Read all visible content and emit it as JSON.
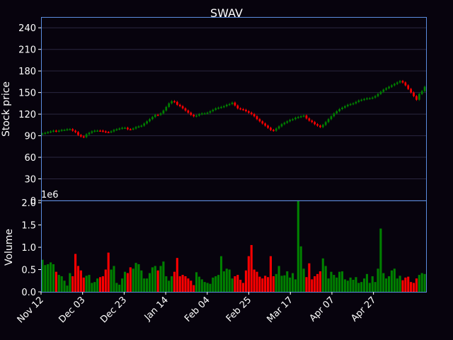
{
  "chart_data": {
    "type": "candlestick",
    "title": "SWAV",
    "colors": {
      "background": "#07030d",
      "frame": "#5b8de0",
      "grid": "#2a2740",
      "up": "#008000",
      "down": "#ff0000",
      "text": "#ffffff"
    },
    "price_panel": {
      "ylabel": "Stock price",
      "ylim": [
        0,
        255
      ],
      "yticks": [
        0,
        30,
        60,
        90,
        120,
        150,
        180,
        210,
        240
      ],
      "grid": true
    },
    "volume_panel": {
      "ylabel": "Volume",
      "exponent_label": "1e6",
      "ylim": [
        0,
        2.05
      ],
      "yticks": [
        "0.0",
        "0.5",
        "1.0",
        "1.5",
        "2.0"
      ],
      "ytick_values": [
        0,
        0.5,
        1.0,
        1.5,
        2.0
      ]
    },
    "x_tick_labels": [
      {
        "label": "Nov 12",
        "index": 0
      },
      {
        "label": "Dec 03",
        "index": 15
      },
      {
        "label": "Dec 23",
        "index": 30
      },
      {
        "label": "Jan 14",
        "index": 45
      },
      {
        "label": "Feb 04",
        "index": 60
      },
      {
        "label": "Feb 25",
        "index": 75
      },
      {
        "label": "Mar 17",
        "index": 90
      },
      {
        "label": "Apr 07",
        "index": 105
      },
      {
        "label": "Apr 27",
        "index": 120
      }
    ],
    "close": [
      93,
      94,
      95,
      96,
      97,
      96,
      97,
      98,
      98,
      99,
      99,
      97,
      95,
      91,
      89,
      88,
      92,
      94,
      96,
      97,
      97,
      97,
      96,
      95,
      95,
      96,
      98,
      99,
      100,
      101,
      101,
      99,
      99,
      100,
      102,
      103,
      104,
      107,
      110,
      113,
      116,
      119,
      119,
      121,
      125,
      130,
      135,
      138,
      137,
      133,
      131,
      128,
      125,
      122,
      119,
      117,
      118,
      120,
      121,
      121,
      122,
      124,
      126,
      128,
      129,
      130,
      131,
      133,
      134,
      136,
      132,
      128,
      127,
      126,
      124,
      122,
      120,
      117,
      113,
      110,
      107,
      104,
      101,
      98,
      97,
      100,
      103,
      106,
      108,
      110,
      112,
      113,
      115,
      116,
      117,
      118,
      114,
      111,
      109,
      106,
      104,
      102,
      105,
      109,
      113,
      117,
      121,
      124,
      127,
      129,
      131,
      133,
      134,
      135,
      137,
      139,
      140,
      141,
      142,
      142,
      143,
      145,
      148,
      151,
      154,
      156,
      158,
      160,
      162,
      164,
      166,
      164,
      160,
      155,
      150,
      145,
      140,
      148,
      152,
      158
    ],
    "change": [
      1,
      1,
      1,
      1,
      1,
      -1,
      1,
      1,
      1,
      1,
      1,
      -1,
      -1,
      -1,
      -1,
      -1,
      1,
      1,
      1,
      1,
      1,
      -1,
      -1,
      -1,
      -1,
      1,
      1,
      1,
      1,
      1,
      1,
      -1,
      -1,
      1,
      1,
      1,
      1,
      1,
      1,
      1,
      1,
      1,
      -1,
      1,
      1,
      1,
      1,
      1,
      -1,
      -1,
      -1,
      -1,
      -1,
      -1,
      -1,
      -1,
      1,
      1,
      1,
      1,
      1,
      1,
      1,
      1,
      1,
      1,
      1,
      1,
      1,
      1,
      -1,
      -1,
      -1,
      -1,
      -1,
      -1,
      -1,
      -1,
      -1,
      -1,
      -1,
      -1,
      -1,
      -1,
      -1,
      1,
      1,
      1,
      1,
      1,
      1,
      1,
      1,
      1,
      1,
      1,
      -1,
      -1,
      -1,
      -1,
      -1,
      -1,
      1,
      1,
      1,
      1,
      1,
      1,
      1,
      1,
      1,
      1,
      1,
      1,
      1,
      1,
      1,
      1,
      1,
      1,
      1,
      1,
      1,
      1,
      1,
      1,
      1,
      1,
      1,
      1,
      1,
      -1,
      -1,
      -1,
      -1,
      -1,
      -1,
      1,
      1,
      1
    ],
    "volume": [
      0.72,
      0.6,
      0.62,
      0.66,
      0.62,
      0.45,
      0.38,
      0.35,
      0.25,
      0.14,
      0.42,
      0.35,
      0.85,
      0.58,
      0.48,
      0.32,
      0.36,
      0.38,
      0.2,
      0.22,
      0.3,
      0.33,
      0.35,
      0.5,
      0.88,
      0.5,
      0.58,
      0.2,
      0.16,
      0.3,
      0.45,
      0.42,
      0.55,
      0.52,
      0.65,
      0.62,
      0.48,
      0.3,
      0.3,
      0.42,
      0.55,
      0.58,
      0.48,
      0.58,
      0.68,
      0.35,
      0.25,
      0.35,
      0.45,
      0.76,
      0.35,
      0.38,
      0.35,
      0.3,
      0.25,
      0.15,
      0.44,
      0.34,
      0.28,
      0.22,
      0.2,
      0.18,
      0.32,
      0.35,
      0.38,
      0.8,
      0.46,
      0.52,
      0.5,
      0.3,
      0.35,
      0.38,
      0.27,
      0.2,
      0.48,
      0.8,
      1.05,
      0.5,
      0.45,
      0.34,
      0.3,
      0.36,
      0.33,
      0.8,
      0.35,
      0.4,
      0.58,
      0.36,
      0.37,
      0.46,
      0.32,
      0.42,
      0.28,
      2.08,
      1.02,
      0.52,
      0.33,
      0.64,
      0.28,
      0.35,
      0.4,
      0.46,
      0.75,
      0.58,
      0.3,
      0.45,
      0.38,
      0.32,
      0.45,
      0.46,
      0.28,
      0.25,
      0.32,
      0.27,
      0.33,
      0.2,
      0.22,
      0.3,
      0.4,
      0.2,
      0.35,
      0.22,
      0.52,
      1.42,
      0.42,
      0.3,
      0.35,
      0.48,
      0.52,
      0.3,
      0.36,
      0.26,
      0.32,
      0.34,
      0.22,
      0.2,
      0.3,
      0.38,
      0.42,
      0.4
    ]
  }
}
